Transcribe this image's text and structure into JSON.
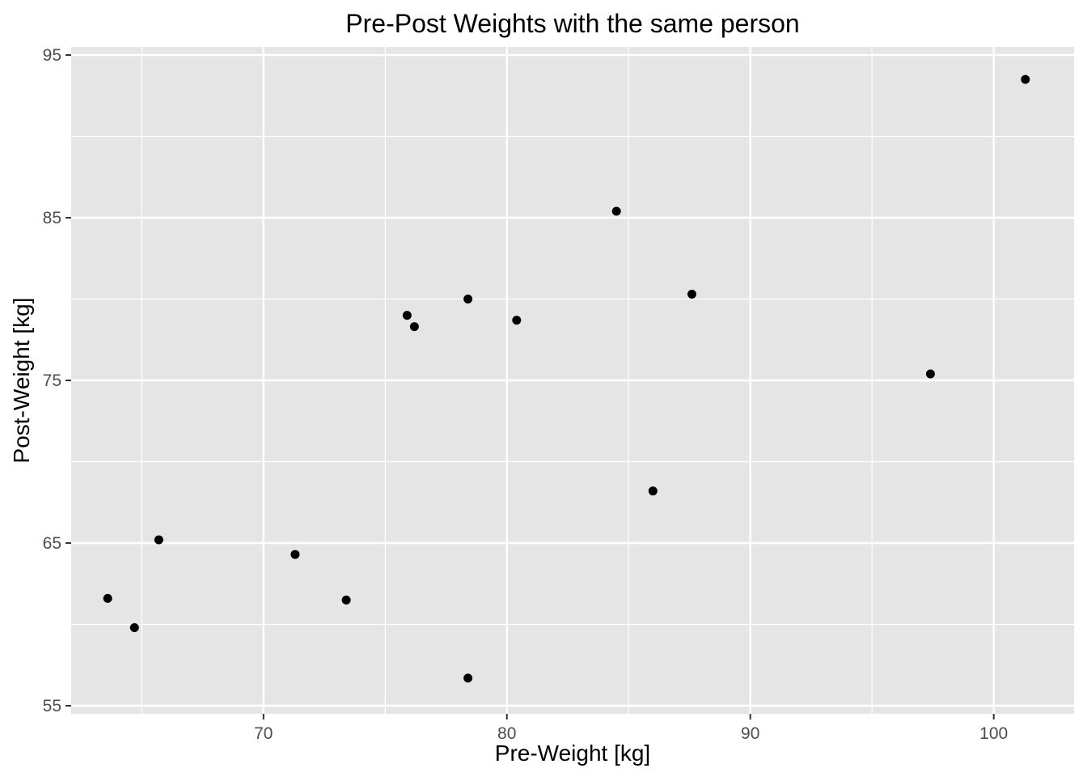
{
  "chart_data": {
    "type": "scatter",
    "title": "Pre-Post Weights with the same person",
    "xlabel": "Pre-Weight [kg]",
    "ylabel": "Post-Weight [kg]",
    "xlim": [
      62.1,
      103.3
    ],
    "ylim": [
      55,
      95
    ],
    "x_ticks": [
      70,
      80,
      90,
      100
    ],
    "y_ticks": [
      55,
      65,
      75,
      85,
      95
    ],
    "x_minor": [
      65,
      75,
      85,
      95
    ],
    "y_minor": [
      60,
      70,
      80,
      90
    ],
    "grid": true,
    "legend": "none",
    "colors": {
      "panel": "#E5E5E5",
      "grid": "#FFFFFF",
      "point": "#000000",
      "axis_text": "#4D4D4D",
      "title_text": "#000000",
      "tick_mark": "#333333"
    },
    "points": [
      {
        "x": 63.6,
        "y": 61.6
      },
      {
        "x": 64.7,
        "y": 59.8
      },
      {
        "x": 65.7,
        "y": 65.2
      },
      {
        "x": 71.3,
        "y": 64.3
      },
      {
        "x": 73.4,
        "y": 61.5
      },
      {
        "x": 75.9,
        "y": 79.0
      },
      {
        "x": 76.2,
        "y": 78.3
      },
      {
        "x": 78.4,
        "y": 80.0
      },
      {
        "x": 78.4,
        "y": 56.7
      },
      {
        "x": 80.4,
        "y": 78.7
      },
      {
        "x": 84.5,
        "y": 85.4
      },
      {
        "x": 86.0,
        "y": 68.2
      },
      {
        "x": 87.6,
        "y": 80.3
      },
      {
        "x": 97.4,
        "y": 75.4
      },
      {
        "x": 101.3,
        "y": 93.5
      }
    ]
  }
}
